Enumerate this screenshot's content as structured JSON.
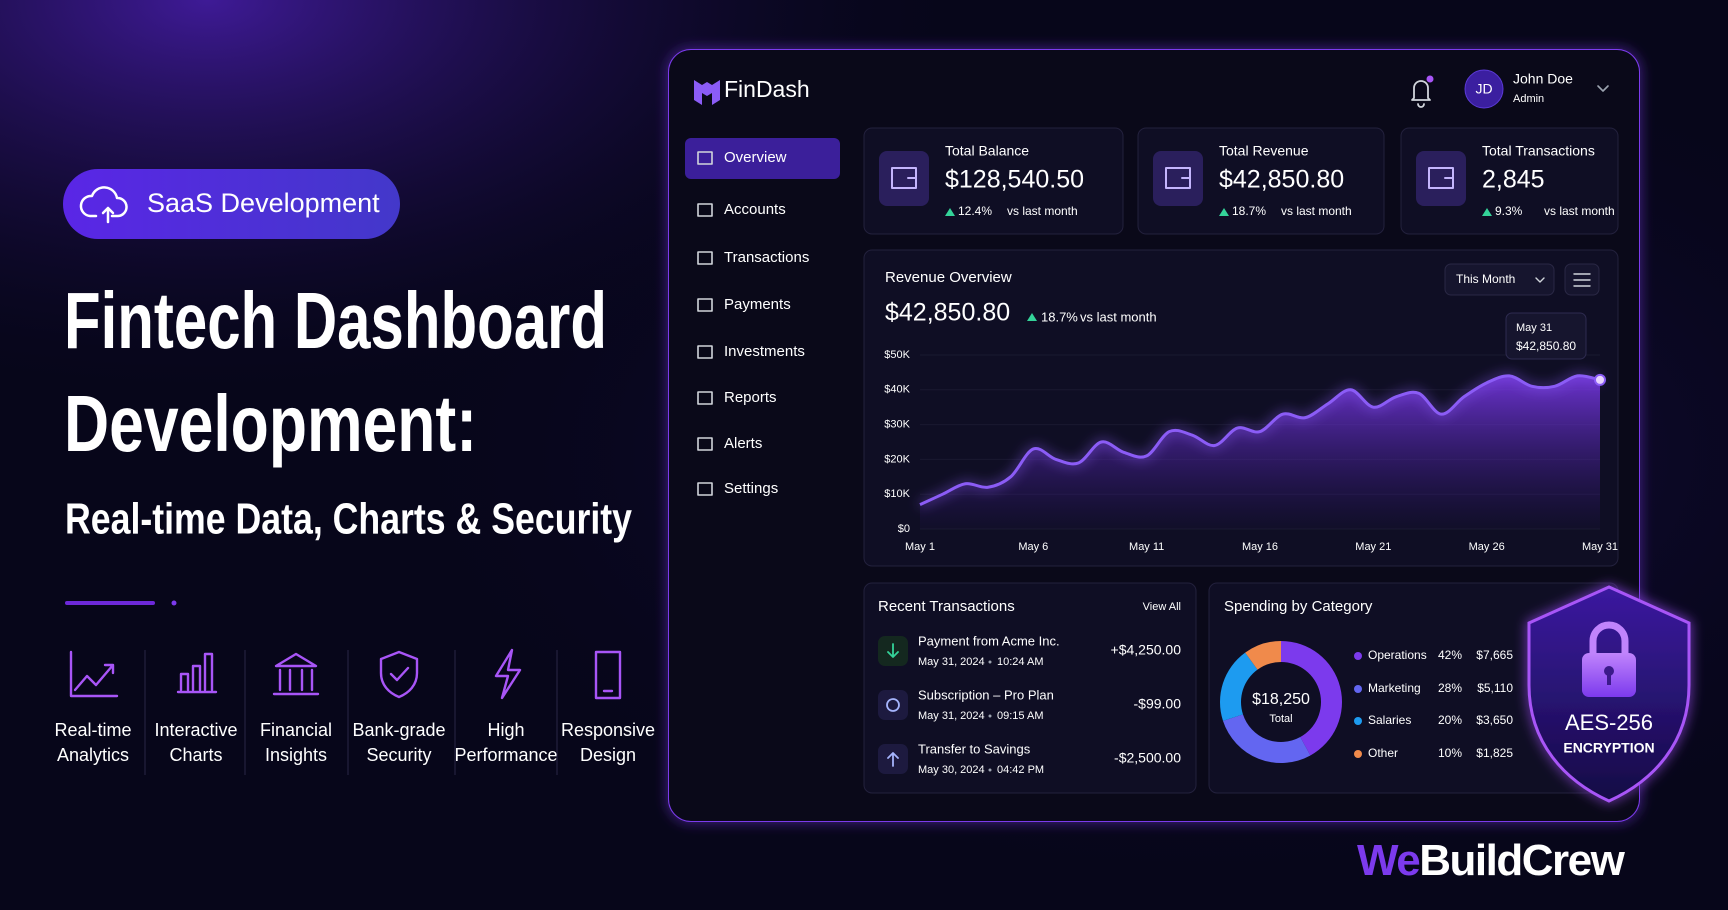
{
  "hero": {
    "badge": "SaaS Development",
    "title_lines": [
      "Fintech Dashboard",
      "Development:"
    ],
    "subtitle": "Real-time Data, Charts & Security"
  },
  "features": [
    [
      "Real-time",
      "Analytics"
    ],
    [
      "Interactive",
      "Charts"
    ],
    [
      "Financial",
      "Insights"
    ],
    [
      "Bank-grade",
      "Security"
    ],
    [
      "High",
      "Performance"
    ],
    [
      "Responsive",
      "Design"
    ]
  ],
  "dashboard": {
    "logo": "FinDash",
    "user": {
      "initials": "JD",
      "name": "John Doe",
      "role": "Admin"
    },
    "nav": [
      "Overview",
      "Accounts",
      "Transactions",
      "Payments",
      "Investments",
      "Reports",
      "Alerts",
      "Settings"
    ],
    "stats": [
      {
        "label": "Total Balance",
        "value": "$128,540.50",
        "change": "12.4%",
        "compare": "vs last month"
      },
      {
        "label": "Total Revenue",
        "value": "$42,850.80",
        "change": "18.7%",
        "compare": "vs last month"
      },
      {
        "label": "Total Transactions",
        "value": "2,845",
        "change": "9.3%",
        "compare": "vs last month"
      }
    ],
    "revenue": {
      "title": "Revenue Overview",
      "total": "$42,850.80",
      "change": "18.7%",
      "compare": "vs last month",
      "period": "This Month",
      "tooltip": {
        "date": "May 31",
        "value": "$42,850.80"
      },
      "chart_data": {
        "type": "line",
        "color": "#8b5cf6",
        "grid": true,
        "categories": [
          "May 1",
          null,
          null,
          null,
          null,
          "May 6",
          null,
          null,
          null,
          null,
          "May 11",
          null,
          null,
          null,
          null,
          "May 16",
          null,
          null,
          null,
          null,
          "May 21",
          null,
          null,
          null,
          null,
          "May 26",
          null,
          null,
          null,
          null,
          "May 31"
        ],
        "values": [
          7000,
          10000,
          13000,
          12000,
          15000,
          23000,
          20000,
          19000,
          25000,
          22000,
          21000,
          28000,
          27000,
          24000,
          29000,
          28000,
          33000,
          32000,
          36000,
          40000,
          35000,
          38000,
          39000,
          33000,
          38000,
          42000,
          44000,
          41000,
          41000,
          44000,
          42850.8
        ],
        "ylim": [
          0,
          50000
        ],
        "yticks": [
          {
            "value": 0,
            "label": "$0"
          },
          {
            "value": 10000,
            "label": "$10K"
          },
          {
            "value": 20000,
            "label": "$20K"
          },
          {
            "value": 30000,
            "label": "$30K"
          },
          {
            "value": 40000,
            "label": "$40K"
          },
          {
            "value": 50000,
            "label": "$50K"
          }
        ]
      }
    },
    "transactions": {
      "title": "Recent Transactions",
      "link": "View All",
      "rows": [
        {
          "name": "Payment from Acme Inc.",
          "date": "May 31, 2024",
          "time": "10:24 AM",
          "amount": "+$4,250.00",
          "color": "#34d399"
        },
        {
          "name": "Subscription – Pro Plan",
          "date": "May 31, 2024",
          "time": "09:15 AM",
          "amount": "-$99.00",
          "color": "#f87171"
        },
        {
          "name": "Transfer to Savings",
          "date": "May 30, 2024",
          "time": "04:42 PM",
          "amount": "-$2,500.00",
          "color": "#f87171"
        }
      ]
    },
    "spending": {
      "title": "Spending by Category",
      "total": "$18,250",
      "total_label": "Total",
      "chart_data": {
        "type": "donut",
        "categories": [
          "Operations",
          "Marketing",
          "Salaries",
          "Other"
        ],
        "values": [
          42,
          28,
          20,
          10
        ],
        "value_labels": [
          "42%",
          "28%",
          "20%",
          "10%"
        ],
        "amounts": [
          "$7,665",
          "$5,110",
          "$3,650",
          "$1,825"
        ],
        "colors": [
          "#7c3aed",
          "#6366f1",
          "#1d9bf0",
          "#f08a4b"
        ]
      }
    }
  },
  "shield": {
    "title": "AES-256",
    "subtitle": "ENCRYPTION"
  },
  "brand": {
    "accent": "We",
    "rest": "BuildCrew"
  }
}
